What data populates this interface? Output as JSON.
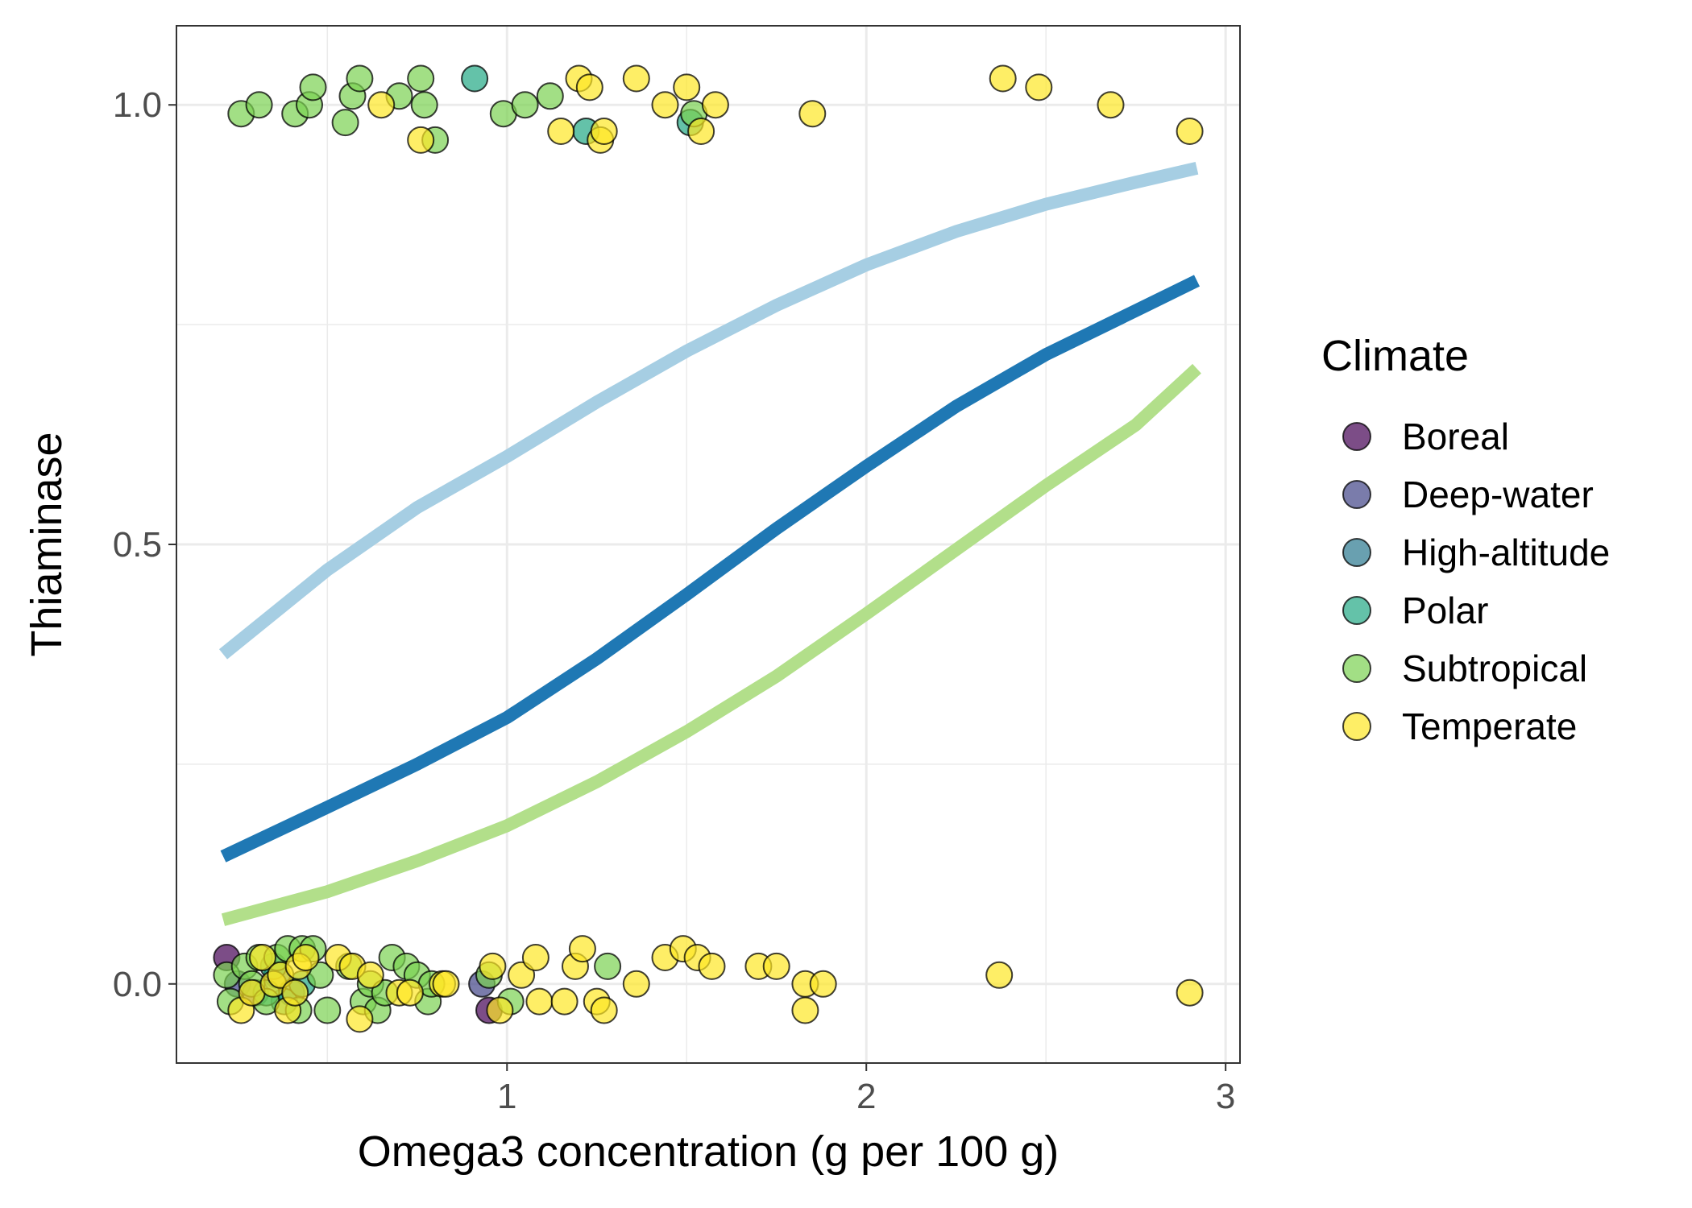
{
  "chart_data": {
    "type": "scatter",
    "title": "",
    "xlabel": "Omega3 concentration (g per 100 g)",
    "ylabel": "Thiaminase",
    "xlim": [
      0.08,
      3.04
    ],
    "ylim": [
      -0.09,
      1.09
    ],
    "x_ticks": [
      1,
      2,
      3
    ],
    "x_tick_labels": [
      "1",
      "2",
      "3"
    ],
    "y_ticks": [
      0.0,
      0.5,
      1.0
    ],
    "y_tick_labels": [
      "0.0",
      "0.5",
      "1.0"
    ],
    "grid": true,
    "legend": {
      "title": "Climate",
      "placement": "right",
      "entries": [
        "Boreal",
        "Deep-water",
        "High-altitude",
        "Polar",
        "Subtropical",
        "Temperate"
      ]
    },
    "colors": {
      "Boreal": "#440154",
      "Deep-water": "#414487",
      "High-altitude": "#2A788E",
      "Polar": "#22A884",
      "Subtropical": "#7AD151",
      "Temperate": "#FDE725"
    },
    "curves": [
      {
        "color": "#A6CEE3",
        "x": [
          0.21,
          0.5,
          0.75,
          1.0,
          1.25,
          1.5,
          1.75,
          2.0,
          2.25,
          2.5,
          2.75,
          2.92
        ],
        "y": [
          0.375,
          0.471,
          0.542,
          0.6,
          0.662,
          0.72,
          0.772,
          0.818,
          0.856,
          0.887,
          0.912,
          0.928
        ]
      },
      {
        "color": "#1F78B4",
        "x": [
          0.21,
          0.5,
          0.75,
          1.0,
          1.25,
          1.5,
          1.75,
          2.0,
          2.25,
          2.5,
          2.75,
          2.92
        ],
        "y": [
          0.145,
          0.201,
          0.25,
          0.303,
          0.37,
          0.443,
          0.518,
          0.589,
          0.657,
          0.716,
          0.766,
          0.8
        ]
      },
      {
        "color": "#B2DF8A",
        "x": [
          0.21,
          0.5,
          0.75,
          1.0,
          1.25,
          1.5,
          1.75,
          2.0,
          2.25,
          2.5,
          2.75,
          2.92
        ],
        "y": [
          0.073,
          0.105,
          0.14,
          0.18,
          0.23,
          0.287,
          0.35,
          0.421,
          0.494,
          0.567,
          0.636,
          0.7
        ]
      }
    ],
    "series": [
      {
        "name": "Boreal",
        "points": [
          [
            0.22,
            0.03
          ],
          [
            0.95,
            -0.03
          ]
        ]
      },
      {
        "name": "Deep-water",
        "points": [
          [
            0.93,
            0.0
          ],
          [
            0.25,
            0.0
          ],
          [
            0.3,
            -0.01
          ]
        ]
      },
      {
        "name": "High-altitude",
        "points": [
          [
            0.36,
            0.01
          ],
          [
            0.4,
            -0.01
          ]
        ]
      },
      {
        "name": "Polar",
        "points": [
          [
            0.91,
            1.03
          ],
          [
            0.35,
            0.02
          ],
          [
            0.38,
            -0.02
          ],
          [
            0.43,
            0.0
          ],
          [
            0.33,
            -0.01
          ],
          [
            1.51,
            0.98
          ],
          [
            1.22,
            0.97
          ]
        ]
      },
      {
        "name": "Subtropical",
        "points": [
          [
            0.26,
            0.99
          ],
          [
            0.31,
            1.0
          ],
          [
            0.41,
            0.99
          ],
          [
            0.45,
            1.0
          ],
          [
            0.46,
            1.02
          ],
          [
            0.55,
            0.98
          ],
          [
            0.57,
            1.01
          ],
          [
            0.59,
            1.03
          ],
          [
            0.7,
            1.01
          ],
          [
            0.76,
            1.03
          ],
          [
            0.77,
            1.0
          ],
          [
            0.8,
            0.96
          ],
          [
            0.99,
            0.99
          ],
          [
            1.05,
            1.0
          ],
          [
            1.12,
            1.01
          ],
          [
            1.52,
            0.99
          ],
          [
            0.22,
            0.01
          ],
          [
            0.23,
            -0.02
          ],
          [
            0.27,
            0.02
          ],
          [
            0.29,
            0.0
          ],
          [
            0.31,
            0.03
          ],
          [
            0.33,
            -0.02
          ],
          [
            0.36,
            0.03
          ],
          [
            0.39,
            0.04
          ],
          [
            0.42,
            -0.03
          ],
          [
            0.43,
            0.04
          ],
          [
            0.46,
            0.04
          ],
          [
            0.48,
            0.01
          ],
          [
            0.5,
            -0.03
          ],
          [
            0.56,
            0.02
          ],
          [
            0.6,
            -0.02
          ],
          [
            0.62,
            0.0
          ],
          [
            0.64,
            -0.03
          ],
          [
            0.66,
            -0.01
          ],
          [
            0.68,
            0.03
          ],
          [
            0.72,
            0.02
          ],
          [
            0.75,
            0.01
          ],
          [
            0.78,
            -0.02
          ],
          [
            0.79,
            0.0
          ],
          [
            0.95,
            0.01
          ],
          [
            1.01,
            -0.02
          ],
          [
            1.28,
            0.02
          ]
        ]
      },
      {
        "name": "Temperate",
        "points": [
          [
            0.65,
            1.0
          ],
          [
            0.76,
            0.96
          ],
          [
            1.15,
            0.97
          ],
          [
            1.2,
            1.03
          ],
          [
            1.23,
            1.02
          ],
          [
            1.26,
            0.96
          ],
          [
            1.27,
            0.97
          ],
          [
            1.36,
            1.03
          ],
          [
            1.44,
            1.0
          ],
          [
            1.5,
            1.02
          ],
          [
            1.54,
            0.97
          ],
          [
            1.58,
            1.0
          ],
          [
            1.85,
            0.99
          ],
          [
            2.38,
            1.03
          ],
          [
            2.48,
            1.02
          ],
          [
            2.68,
            1.0
          ],
          [
            2.9,
            0.97
          ],
          [
            0.26,
            -0.03
          ],
          [
            0.29,
            -0.01
          ],
          [
            0.32,
            0.03
          ],
          [
            0.35,
            0.0
          ],
          [
            0.37,
            0.01
          ],
          [
            0.39,
            -0.03
          ],
          [
            0.41,
            -0.01
          ],
          [
            0.42,
            0.02
          ],
          [
            0.44,
            0.03
          ],
          [
            0.53,
            0.03
          ],
          [
            0.57,
            0.02
          ],
          [
            0.59,
            -0.04
          ],
          [
            0.62,
            0.01
          ],
          [
            0.7,
            -0.01
          ],
          [
            0.73,
            -0.01
          ],
          [
            0.82,
            0.0
          ],
          [
            0.83,
            0.0
          ],
          [
            0.96,
            0.02
          ],
          [
            0.98,
            -0.03
          ],
          [
            1.04,
            0.01
          ],
          [
            1.08,
            0.03
          ],
          [
            1.09,
            -0.02
          ],
          [
            1.16,
            -0.02
          ],
          [
            1.19,
            0.02
          ],
          [
            1.21,
            0.04
          ],
          [
            1.25,
            -0.02
          ],
          [
            1.27,
            -0.03
          ],
          [
            1.36,
            0.0
          ],
          [
            1.44,
            0.03
          ],
          [
            1.49,
            0.04
          ],
          [
            1.53,
            0.03
          ],
          [
            1.57,
            0.02
          ],
          [
            1.7,
            0.02
          ],
          [
            1.75,
            0.02
          ],
          [
            1.83,
            0.0
          ],
          [
            1.83,
            -0.03
          ],
          [
            1.88,
            0.0
          ],
          [
            2.37,
            0.01
          ],
          [
            2.9,
            -0.01
          ]
        ]
      }
    ]
  }
}
